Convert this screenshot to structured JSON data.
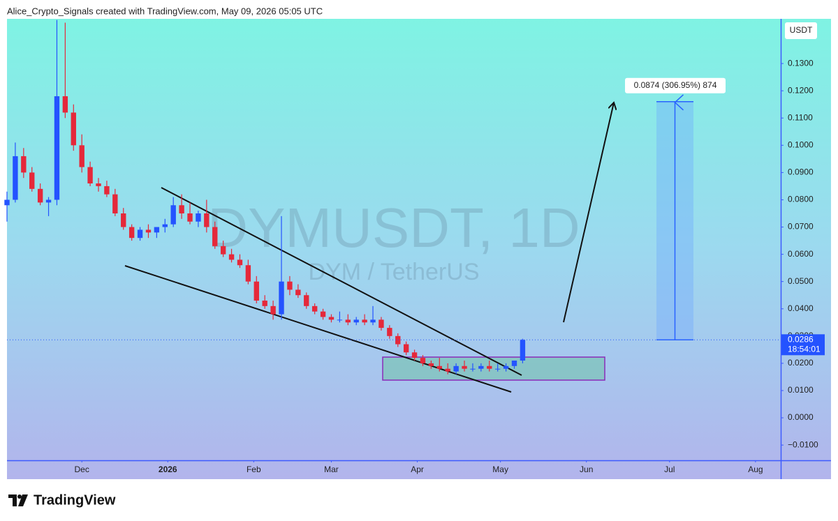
{
  "chart_data": {
    "type": "candlestick",
    "attribution": "Alice_Crypto_Signals created with TradingView.com, May 09, 2026 05:05 UTC",
    "watermark": "DYMUSDT, 1D",
    "watermark_sub": "DYM / TetherUS",
    "currency": "USDT",
    "last_price": 0.0286,
    "countdown": "18:54:01",
    "measure_label": "0.0874 (306.95%) 874",
    "measure_target": 0.116,
    "brand": "TradingView",
    "up_color": "#2453ff",
    "down_color": "#e5283a",
    "x": [
      0,
      3,
      6,
      9,
      12,
      15,
      18,
      21,
      24,
      27,
      30,
      33,
      36,
      39,
      42,
      45,
      48,
      51,
      54,
      57,
      60,
      63,
      66,
      69,
      72,
      75,
      78,
      81,
      84,
      87,
      90,
      93,
      96,
      99,
      102,
      105,
      108,
      111,
      114,
      117,
      120,
      123,
      126,
      129,
      132,
      135,
      138,
      141,
      144,
      147,
      150,
      153,
      156,
      159,
      162,
      165,
      168,
      171,
      174,
      177,
      180,
      183,
      186
    ],
    "open": [
      0.078,
      0.08,
      0.096,
      0.09,
      0.084,
      0.079,
      0.08,
      0.118,
      0.112,
      0.1,
      0.092,
      0.086,
      0.085,
      0.082,
      0.075,
      0.07,
      0.066,
      0.069,
      0.068,
      0.07,
      0.071,
      0.078,
      0.075,
      0.072,
      0.075,
      0.07,
      0.063,
      0.06,
      0.058,
      0.056,
      0.05,
      0.043,
      0.041,
      0.038,
      0.05,
      0.047,
      0.045,
      0.041,
      0.039,
      0.037,
      0.036,
      0.036,
      0.035,
      0.036,
      0.035,
      0.036,
      0.033,
      0.03,
      0.027,
      0.024,
      0.022,
      0.02,
      0.019,
      0.018,
      0.017,
      0.019,
      0.018,
      0.018,
      0.019,
      0.018,
      0.018,
      0.019,
      0.021
    ],
    "high": [
      0.083,
      0.101,
      0.099,
      0.092,
      0.086,
      0.081,
      0.146,
      0.145,
      0.115,
      0.104,
      0.094,
      0.088,
      0.087,
      0.084,
      0.077,
      0.071,
      0.07,
      0.071,
      0.07,
      0.073,
      0.081,
      0.082,
      0.079,
      0.076,
      0.08,
      0.072,
      0.065,
      0.062,
      0.06,
      0.058,
      0.052,
      0.045,
      0.043,
      0.074,
      0.052,
      0.049,
      0.046,
      0.042,
      0.04,
      0.038,
      0.039,
      0.038,
      0.037,
      0.038,
      0.041,
      0.037,
      0.034,
      0.031,
      0.028,
      0.025,
      0.023,
      0.021,
      0.022,
      0.02,
      0.02,
      0.021,
      0.02,
      0.02,
      0.021,
      0.02,
      0.02,
      0.021,
      0.029
    ],
    "low": [
      0.072,
      0.079,
      0.088,
      0.083,
      0.078,
      0.074,
      0.078,
      0.11,
      0.098,
      0.09,
      0.085,
      0.083,
      0.081,
      0.074,
      0.069,
      0.065,
      0.065,
      0.066,
      0.066,
      0.068,
      0.07,
      0.073,
      0.071,
      0.07,
      0.068,
      0.062,
      0.059,
      0.057,
      0.055,
      0.049,
      0.042,
      0.04,
      0.036,
      0.036,
      0.045,
      0.044,
      0.04,
      0.038,
      0.036,
      0.035,
      0.035,
      0.034,
      0.034,
      0.034,
      0.034,
      0.032,
      0.029,
      0.026,
      0.023,
      0.021,
      0.019,
      0.018,
      0.017,
      0.016,
      0.016,
      0.017,
      0.017,
      0.017,
      0.017,
      0.017,
      0.017,
      0.018,
      0.02
    ],
    "close": [
      0.08,
      0.096,
      0.09,
      0.084,
      0.079,
      0.08,
      0.118,
      0.112,
      0.1,
      0.092,
      0.086,
      0.085,
      0.082,
      0.075,
      0.07,
      0.066,
      0.069,
      0.068,
      0.07,
      0.071,
      0.078,
      0.075,
      0.072,
      0.075,
      0.07,
      0.063,
      0.06,
      0.058,
      0.056,
      0.05,
      0.043,
      0.041,
      0.038,
      0.05,
      0.047,
      0.045,
      0.041,
      0.039,
      0.037,
      0.036,
      0.036,
      0.035,
      0.036,
      0.035,
      0.036,
      0.033,
      0.03,
      0.027,
      0.024,
      0.022,
      0.02,
      0.019,
      0.018,
      0.017,
      0.019,
      0.018,
      0.018,
      0.019,
      0.018,
      0.018,
      0.019,
      0.021,
      0.0286
    ],
    "xlim": [
      0,
      279.1
    ],
    "xticks": [
      {
        "value": 27,
        "label": "Dec"
      },
      {
        "value": 58,
        "label": "2026"
      },
      {
        "value": 89,
        "label": "Feb"
      },
      {
        "value": 117,
        "label": "Mar"
      },
      {
        "value": 148,
        "label": "Apr"
      },
      {
        "value": 178,
        "label": "May"
      },
      {
        "value": 209,
        "label": "Jun"
      },
      {
        "value": 239,
        "label": "Jul"
      },
      {
        "value": 270,
        "label": "Aug"
      }
    ],
    "ylim": [
      -0.0156,
      0.1464
    ],
    "yticks": [
      {
        "value": -0.01,
        "label": "−0.0100"
      },
      {
        "value": 0,
        "label": "0.0000"
      },
      {
        "value": 0.01,
        "label": "0.0100"
      },
      {
        "value": 0.02,
        "label": "0.0200"
      },
      {
        "value": 0.03,
        "label": "0.0300"
      },
      {
        "value": 0.04,
        "label": "0.0400"
      },
      {
        "value": 0.05,
        "label": "0.0500"
      },
      {
        "value": 0.06,
        "label": "0.0600"
      },
      {
        "value": 0.07,
        "label": "0.0700"
      },
      {
        "value": 0.08,
        "label": "0.0800"
      },
      {
        "value": 0.09,
        "label": "0.0900"
      },
      {
        "value": 0.1,
        "label": "0.1000"
      },
      {
        "value": 0.11,
        "label": "0.1100"
      },
      {
        "value": 0.12,
        "label": "0.1200"
      },
      {
        "value": 0.13,
        "label": "0.1300"
      }
    ]
  }
}
